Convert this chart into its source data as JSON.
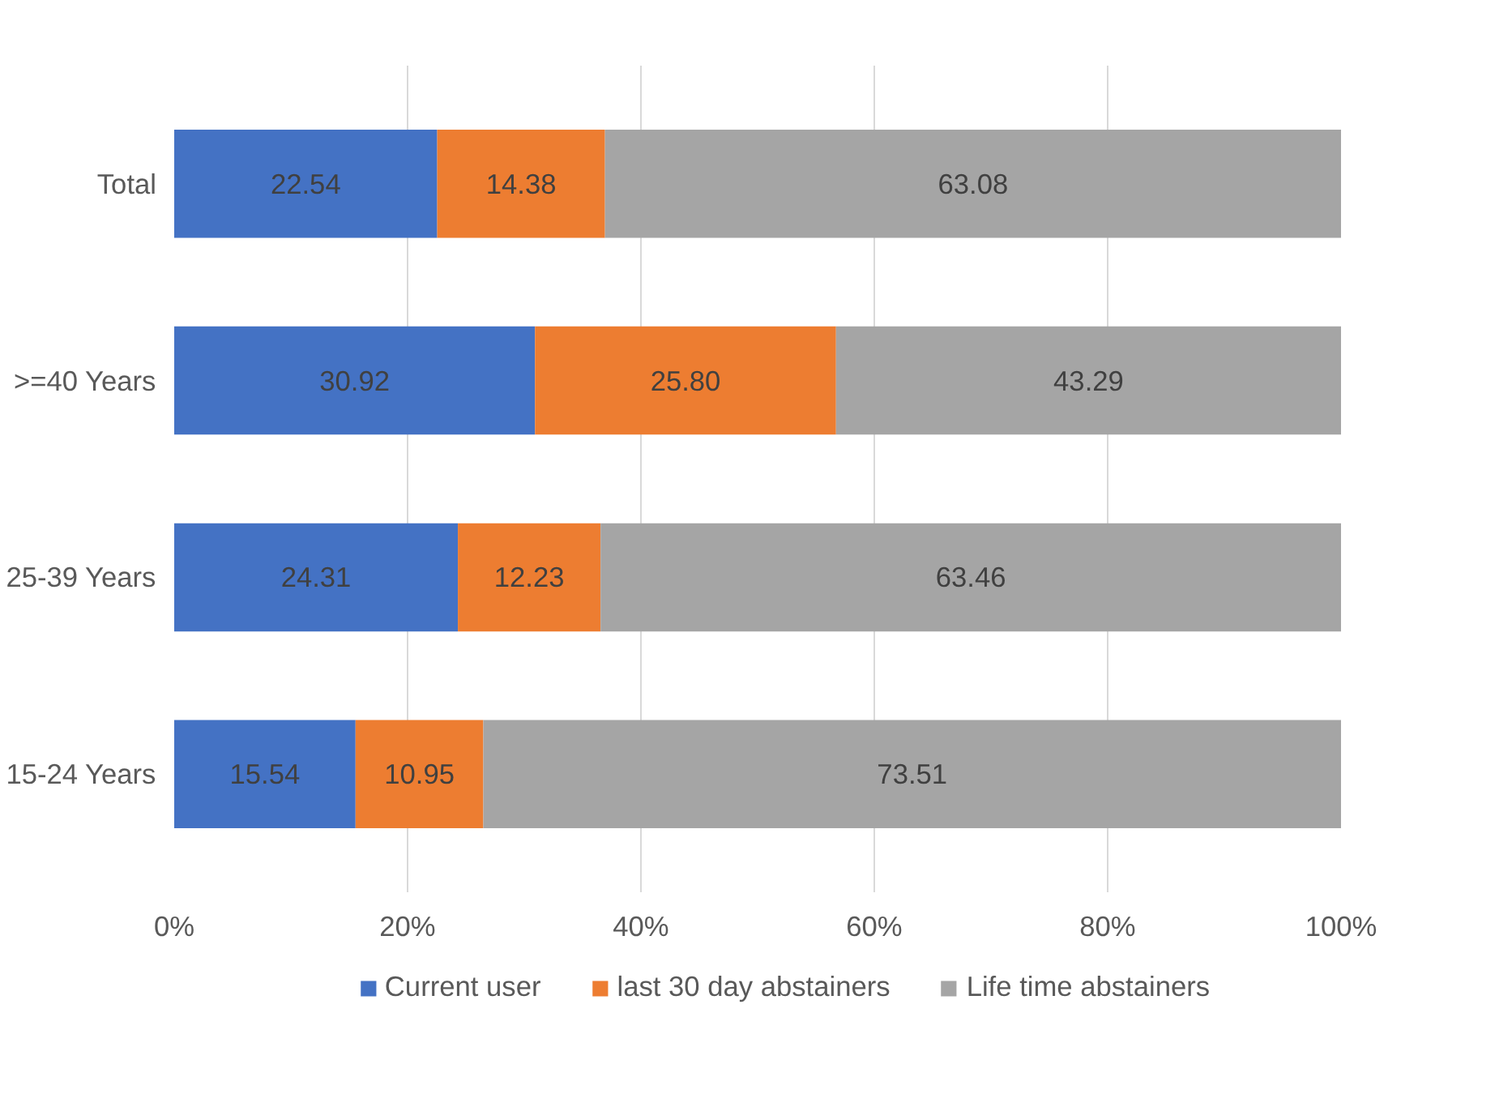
{
  "chart_data": {
    "type": "bar",
    "orientation": "horizontal",
    "stacked": true,
    "categories": [
      "Total",
      ">=40 Years",
      "25-39 Years",
      "15-24 Years"
    ],
    "series": [
      {
        "name": "Current user",
        "color": "#4472c4",
        "values": [
          22.54,
          30.92,
          24.31,
          15.54
        ],
        "value_labels": [
          "22.54",
          "30.92",
          "24.31",
          "15.54"
        ]
      },
      {
        "name": "last 30 day abstainers",
        "color": "#ed7d31",
        "values": [
          14.38,
          25.8,
          12.23,
          10.95
        ],
        "value_labels": [
          "14.38",
          "25.80",
          "12.23",
          "10.95"
        ]
      },
      {
        "name": "Life time abstainers",
        "color": "#a5a5a5",
        "values": [
          63.08,
          43.29,
          63.46,
          73.51
        ],
        "value_labels": [
          "63.08",
          "43.29",
          "63.46",
          "73.51"
        ]
      }
    ],
    "xlim": [
      0,
      100
    ],
    "xticks": [
      {
        "value": 0,
        "label": "0%"
      },
      {
        "value": 20,
        "label": "20%"
      },
      {
        "value": 40,
        "label": "40%"
      },
      {
        "value": 60,
        "label": "60%"
      },
      {
        "value": 80,
        "label": "80%"
      },
      {
        "value": 100,
        "label": "100%"
      }
    ],
    "grid": "x",
    "legend": "bottom"
  }
}
